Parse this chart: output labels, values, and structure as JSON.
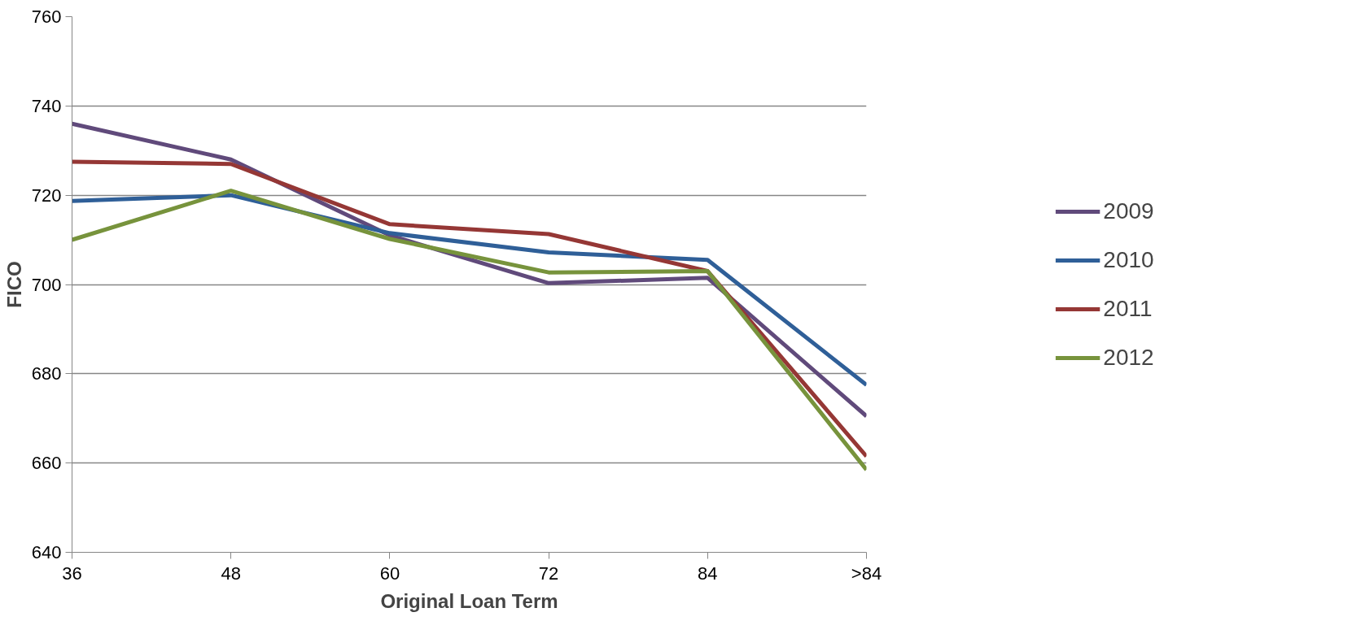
{
  "chart_data": {
    "type": "line",
    "xlabel": "Original Loan Term",
    "ylabel": "FICO",
    "categories": [
      "36",
      "48",
      "60",
      "72",
      "84",
      ">84"
    ],
    "series": [
      {
        "name": "2009",
        "color": "#604a7b",
        "values": [
          736,
          728,
          711,
          700.3,
          701.5,
          670.5
        ]
      },
      {
        "name": "2010",
        "color": "#2f5f98",
        "values": [
          718.7,
          720,
          711.5,
          707.2,
          705.5,
          677.5
        ]
      },
      {
        "name": "2011",
        "color": "#953735",
        "values": [
          727.5,
          727,
          713.5,
          711.3,
          703,
          661.5
        ]
      },
      {
        "name": "2012",
        "color": "#77933c",
        "values": [
          710,
          721,
          710.2,
          702.7,
          703,
          658.5
        ]
      }
    ],
    "ylim": [
      640,
      760
    ],
    "yticks": [
      640,
      660,
      680,
      700,
      720,
      740,
      760
    ],
    "grid": "y",
    "legend": "right",
    "marker": "none",
    "line_style": "solid"
  }
}
